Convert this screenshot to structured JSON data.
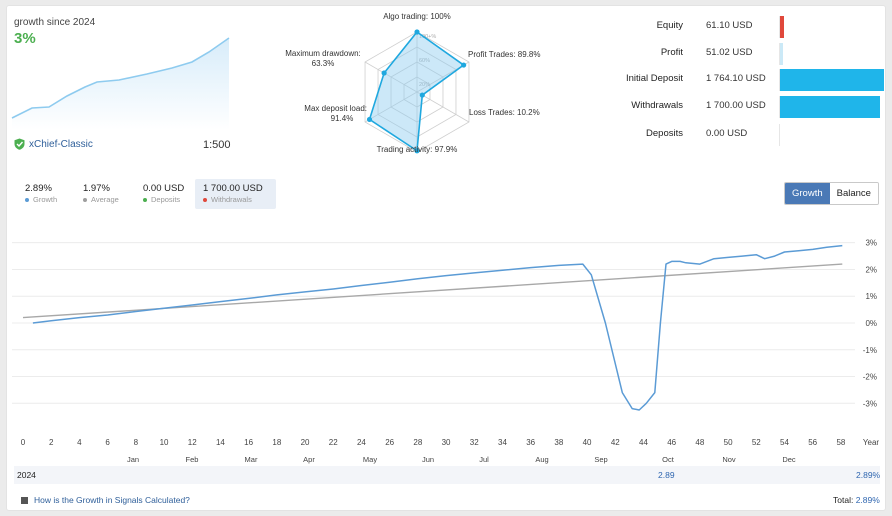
{
  "header": {
    "growth_since_label": "growth since 2024",
    "growth_value": "3%",
    "account_name": "xChief-Classic",
    "leverage": "1:500"
  },
  "radar": {
    "algo_trading": "Algo trading: 100%",
    "profit_trades": "Profit Trades: 89.8%",
    "loss_trades": "Loss Trades: 10.2%",
    "trading_activity": "Trading activity: 97.9%",
    "max_deposit_load_line1": "Max deposit load:",
    "max_deposit_load_line2": "91.4%",
    "max_drawdown_line1": "Maximum drawdown:",
    "max_drawdown_line2": "63.3%",
    "ring_100": "100+%",
    "ring_60": "60%",
    "ring_20": "20%",
    "values": [
      1.0,
      0.898,
      0.102,
      0.979,
      0.914,
      0.633
    ]
  },
  "stats": [
    {
      "label": "Equity",
      "value": "61.10 USD",
      "bar": 0.035,
      "color": "#e0483b"
    },
    {
      "label": "Profit",
      "value": "51.02 USD",
      "bar": 0.029,
      "color": "#cbe9f7"
    },
    {
      "label": "Initial Deposit",
      "value": "1 764.10 USD",
      "bar": 1.0,
      "color": "#1fb5ea"
    },
    {
      "label": "Withdrawals",
      "value": "1 700.00 USD",
      "bar": 0.964,
      "color": "#1fb5ea"
    },
    {
      "label": "Deposits",
      "value": "0.00 USD",
      "bar": 0.0,
      "color": "#1fb5ea"
    }
  ],
  "summary": [
    {
      "value": "2.89%",
      "label": "Growth",
      "dot": "#5b9bd5"
    },
    {
      "value": "1.97%",
      "label": "Average",
      "dot": "#9e9e9e"
    },
    {
      "value": "0.00 USD",
      "label": "Deposits",
      "dot": "#4caf50"
    },
    {
      "value": "1 700.00 USD",
      "label": "Withdrawals",
      "dot": "#e0483b"
    }
  ],
  "toggle": {
    "growth": "Growth",
    "balance": "Balance"
  },
  "chart_data": {
    "type": "line",
    "x_ticks": [
      "0",
      "2",
      "4",
      "6",
      "8",
      "10",
      "12",
      "14",
      "16",
      "18",
      "20",
      "22",
      "24",
      "26",
      "28",
      "30",
      "32",
      "34",
      "36",
      "38",
      "40",
      "42",
      "44",
      "46",
      "48",
      "50",
      "52",
      "54",
      "56",
      "58",
      "Year"
    ],
    "y_ticks": [
      "3%",
      "2%",
      "1%",
      "0%",
      "-1%",
      "-2%",
      "-3%"
    ],
    "months": [
      "Jan",
      "Feb",
      "Mar",
      "Apr",
      "May",
      "Jun",
      "Jul",
      "Aug",
      "Sep",
      "Oct",
      "Nov",
      "Dec"
    ],
    "ylim": [
      -3.4,
      3.1
    ],
    "xlim": [
      0,
      59
    ],
    "series": [
      {
        "name": "Growth",
        "color": "#5b9bd5",
        "x": [
          0.7,
          2,
          4,
          6,
          8,
          10,
          12,
          14,
          16,
          18,
          20,
          22,
          24,
          26,
          28,
          30,
          32,
          34,
          36,
          38,
          39.7,
          40.3,
          41.3,
          42.5,
          43.2,
          43.7,
          44.2,
          44.8,
          45.2,
          45.6,
          46,
          46.6,
          47,
          48,
          49,
          50,
          51,
          52,
          52.6,
          53.3,
          54,
          55,
          56,
          57,
          58.1
        ],
        "y": [
          0.0,
          0.08,
          0.2,
          0.3,
          0.43,
          0.55,
          0.67,
          0.8,
          0.92,
          1.05,
          1.16,
          1.27,
          1.4,
          1.52,
          1.65,
          1.77,
          1.87,
          1.97,
          2.07,
          2.15,
          2.2,
          1.8,
          0.0,
          -2.6,
          -3.2,
          -3.25,
          -3.0,
          -2.6,
          0.0,
          2.2,
          2.3,
          2.3,
          2.25,
          2.2,
          2.4,
          2.45,
          2.5,
          2.55,
          2.4,
          2.5,
          2.65,
          2.7,
          2.75,
          2.83,
          2.89
        ]
      },
      {
        "name": "Average",
        "color": "#a8a8a8",
        "x": [
          0,
          58.1
        ],
        "y": [
          0.2,
          2.2
        ]
      }
    ]
  },
  "footer": {
    "year": "2024",
    "year_value": "2.89",
    "year_total": "2.89%",
    "help_link": "How is the Growth in Signals Calculated?",
    "total_label": "Total:",
    "total_value": "2.89%"
  }
}
